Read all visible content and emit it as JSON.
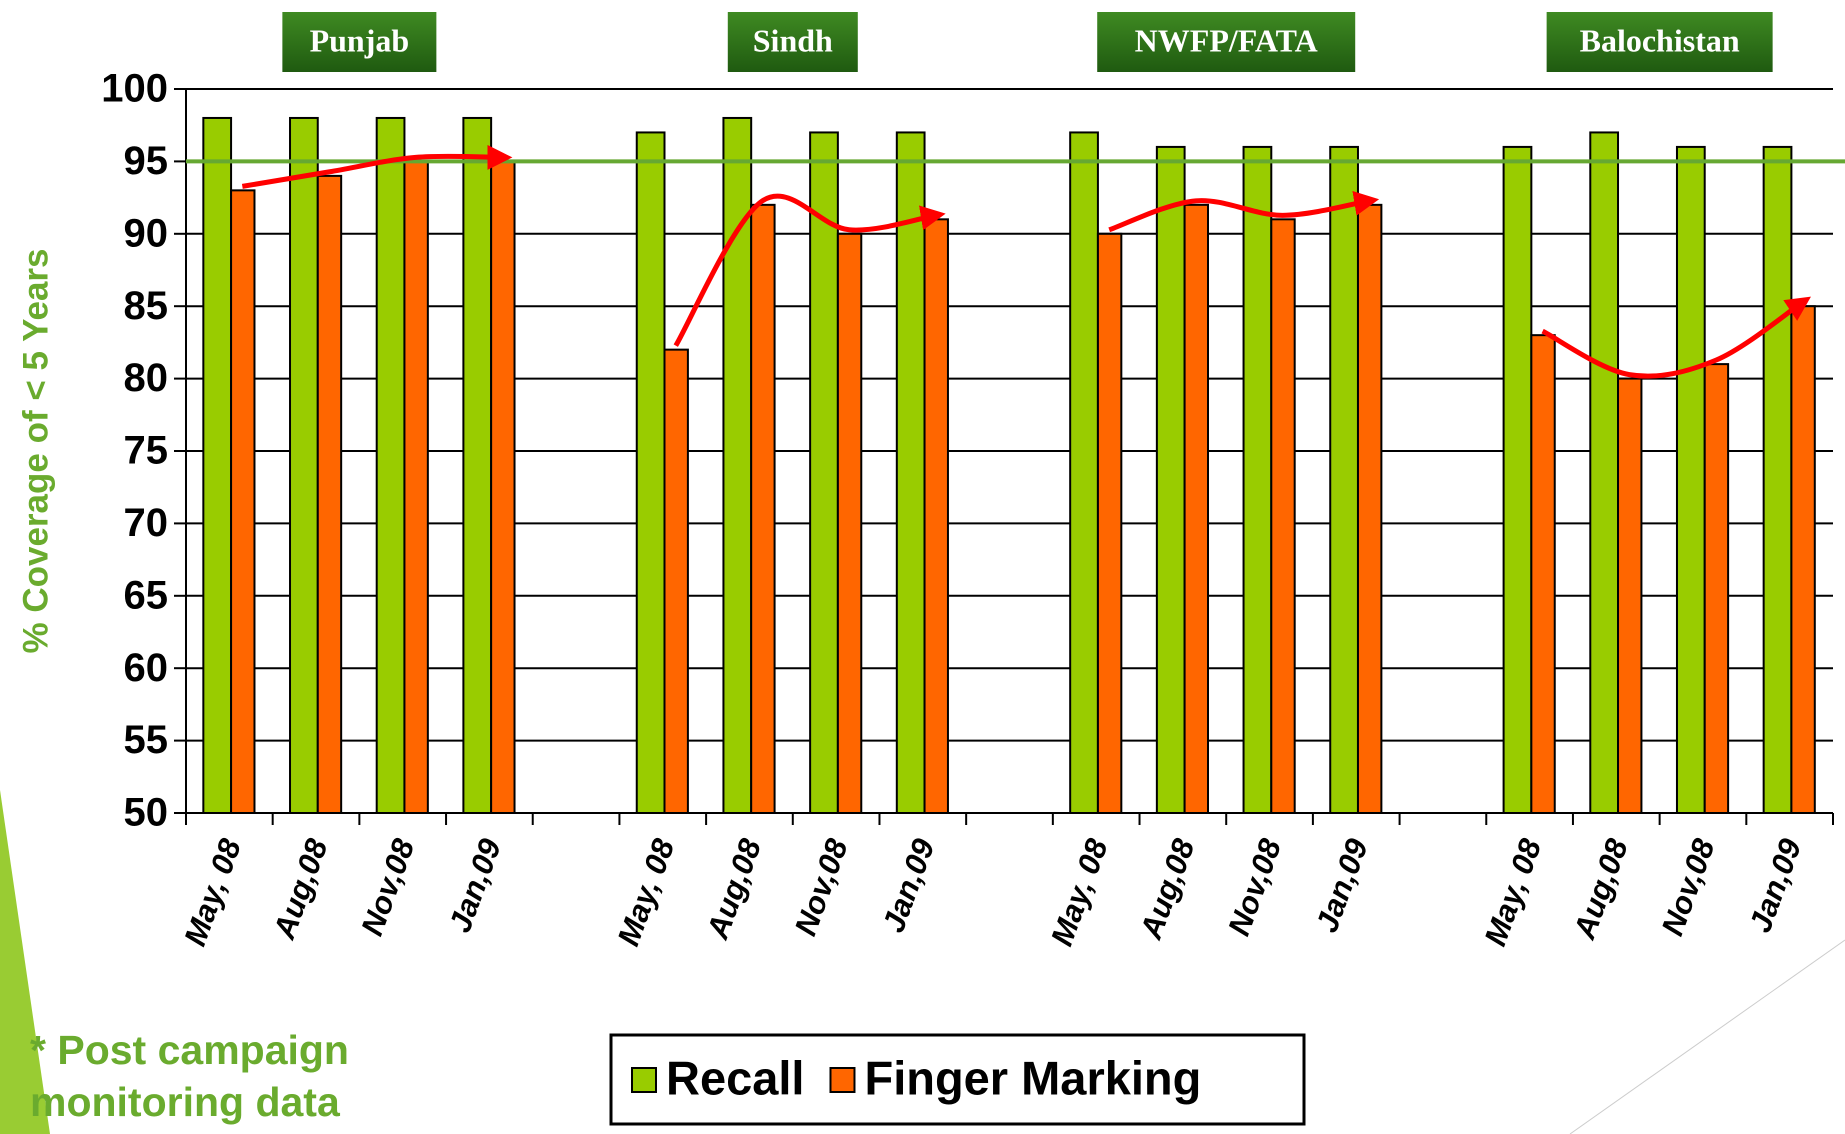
{
  "chart_data": {
    "type": "bar",
    "y_axis_label": "% Coverage of < 5 Years",
    "group_labels": [
      "Punjab",
      "Sindh",
      "NWFP/FATA",
      "Balochistan"
    ],
    "categories": [
      "May, 08",
      "Aug,08",
      "Nov,08",
      "Jan,09",
      null,
      "May, 08",
      "Aug,08",
      "Nov,08",
      "Jan,09",
      null,
      "May, 08",
      "Aug,08",
      "Nov,08",
      "Jan,09",
      null,
      "May, 08",
      "Aug,08",
      "Nov,08",
      "Jan,09"
    ],
    "series": [
      {
        "name": "Recall",
        "color": "#99cc00",
        "values": [
          98,
          98,
          98,
          98,
          null,
          97,
          98,
          97,
          97,
          null,
          97,
          96,
          96,
          96,
          null,
          96,
          97,
          96,
          96
        ]
      },
      {
        "name": "Finger Marking",
        "color": "#ff6600",
        "values": [
          93,
          94,
          95,
          95,
          null,
          82,
          92,
          90,
          91,
          null,
          90,
          92,
          91,
          92,
          null,
          83,
          80,
          81,
          85
        ]
      }
    ],
    "reference_line": 95,
    "reference_color": "#66a832",
    "ylim": [
      50,
      100
    ],
    "yticks": [
      50,
      55,
      60,
      65,
      70,
      75,
      80,
      85,
      90,
      95,
      100
    ],
    "grid": true,
    "legend": "bottom",
    "footnote": "* Post campaign monitoring data"
  }
}
